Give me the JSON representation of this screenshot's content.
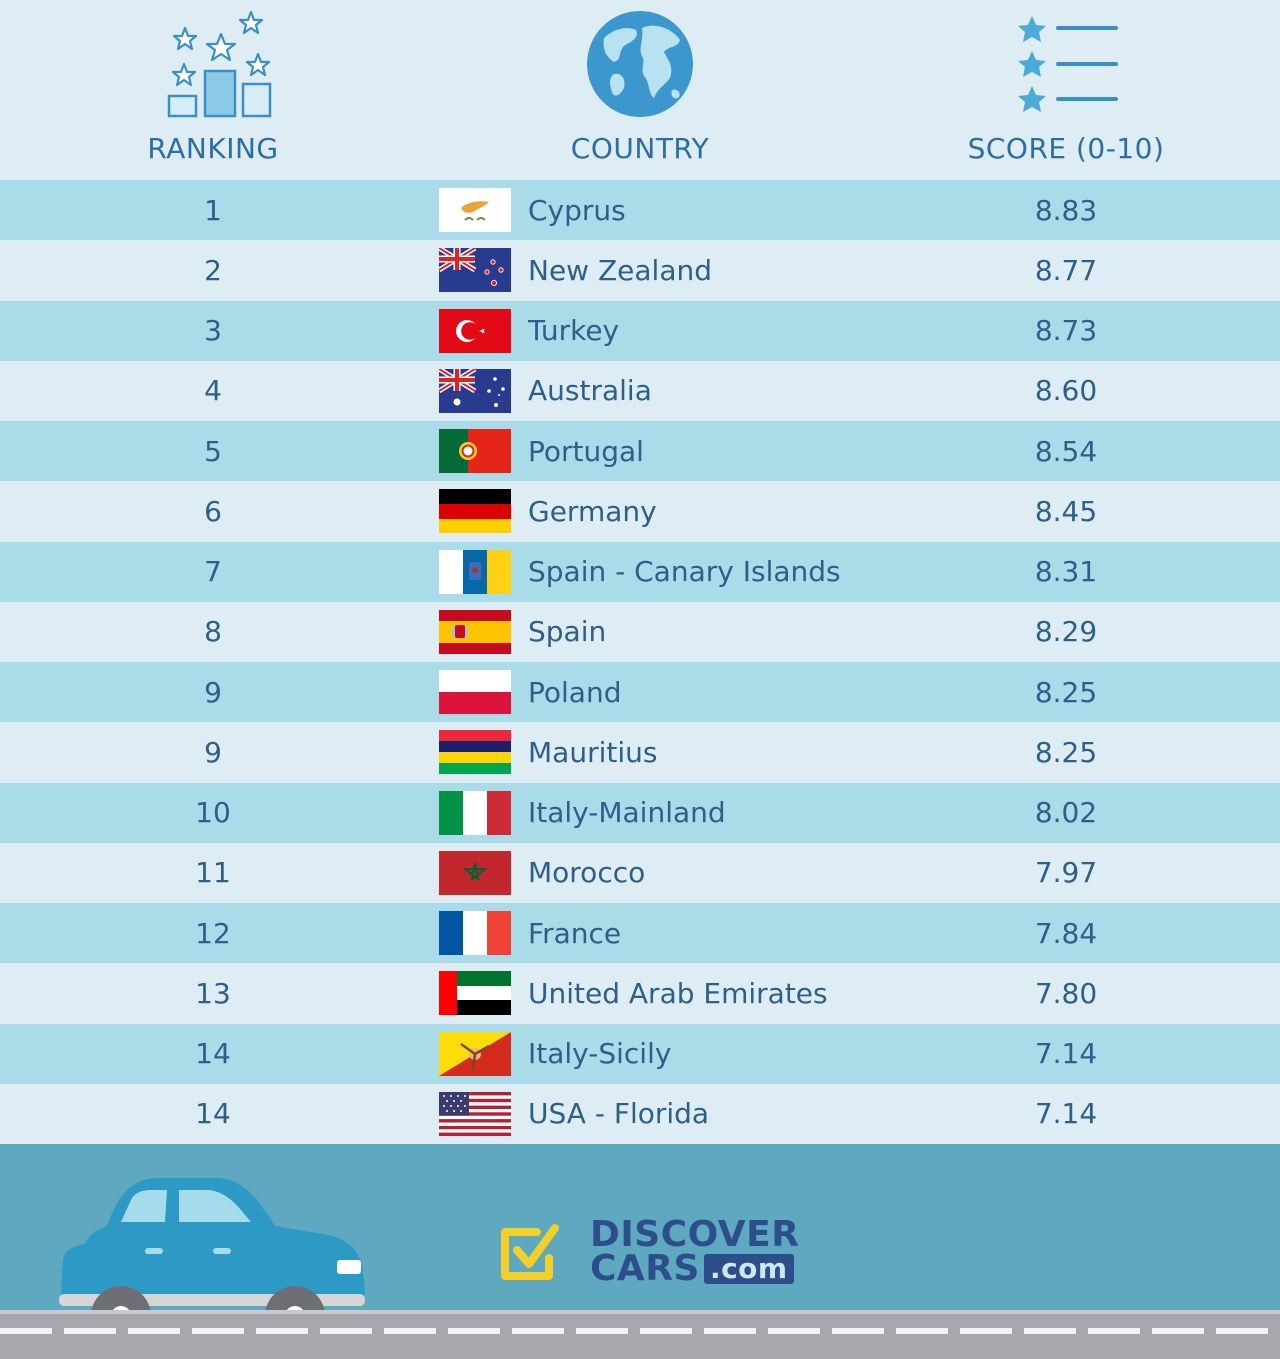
{
  "header": {
    "ranking_label": "RANKING",
    "country_label": "COUNTRY",
    "score_label": "SCORE (0-10)"
  },
  "rows": [
    {
      "rank": "1",
      "country": "Cyprus",
      "score": "8.83",
      "flag": "cyprus-flag-icon"
    },
    {
      "rank": "2",
      "country": "New Zealand",
      "score": "8.77",
      "flag": "new-zealand-flag-icon"
    },
    {
      "rank": "3",
      "country": "Turkey",
      "score": "8.73",
      "flag": "turkey-flag-icon"
    },
    {
      "rank": "4",
      "country": "Australia",
      "score": "8.60",
      "flag": "australia-flag-icon"
    },
    {
      "rank": "5",
      "country": "Portugal",
      "score": "8.54",
      "flag": "portugal-flag-icon"
    },
    {
      "rank": "6",
      "country": "Germany",
      "score": "8.45",
      "flag": "germany-flag-icon"
    },
    {
      "rank": "7",
      "country": "Spain - Canary Islands",
      "score": "8.31",
      "flag": "canary-islands-flag-icon"
    },
    {
      "rank": "8",
      "country": "Spain",
      "score": "8.29",
      "flag": "spain-flag-icon"
    },
    {
      "rank": "9",
      "country": "Poland",
      "score": "8.25",
      "flag": "poland-flag-icon"
    },
    {
      "rank": "9",
      "country": "Mauritius",
      "score": "8.25",
      "flag": "mauritius-flag-icon"
    },
    {
      "rank": "10",
      "country": "Italy-Mainland",
      "score": "8.02",
      "flag": "italy-flag-icon"
    },
    {
      "rank": "11",
      "country": "Morocco",
      "score": "7.97",
      "flag": "morocco-flag-icon"
    },
    {
      "rank": "12",
      "country": "France",
      "score": "7.84",
      "flag": "france-flag-icon"
    },
    {
      "rank": "13",
      "country": "United Arab Emirates",
      "score": "7.80",
      "flag": "uae-flag-icon"
    },
    {
      "rank": "14",
      "country": "Italy-Sicily",
      "score": "7.14",
      "flag": "sicily-flag-icon"
    },
    {
      "rank": "14",
      "country": "USA - Florida",
      "score": "7.14",
      "flag": "usa-flag-icon"
    }
  ],
  "footer": {
    "brand_line1": "DISCOVER",
    "brand_line2": "CARS",
    "brand_suffix": ".com"
  },
  "colors": {
    "accent": "#2a6fa3",
    "row_blue": "#a9dbe8",
    "row_light": "#deedf4",
    "footer": "#5ea9c0"
  }
}
